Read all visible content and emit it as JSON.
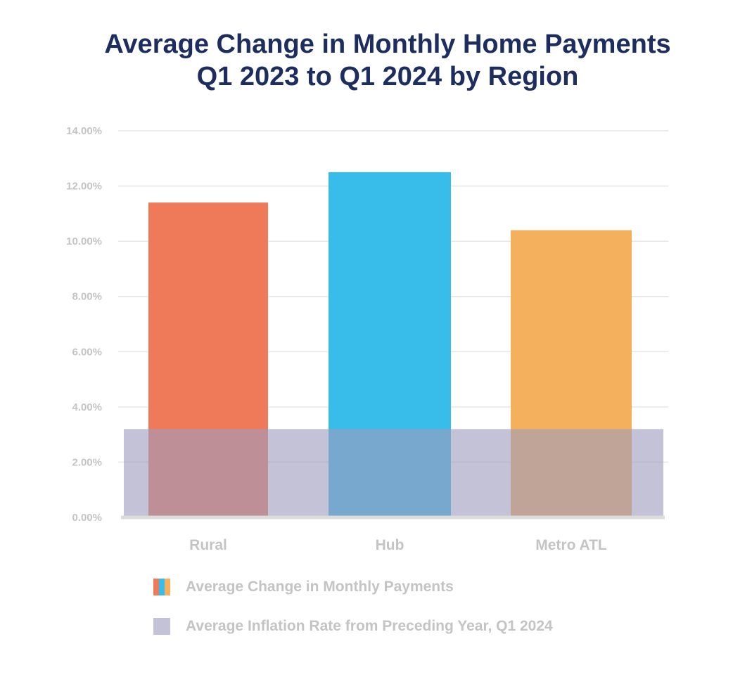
{
  "chart_data": {
    "type": "bar",
    "title": "Average Change in Monthly Home Payments",
    "subtitle": "Q1 2023 to Q1 2024 by Region",
    "xlabel": "",
    "ylabel": "",
    "categories": [
      "Rural",
      "Hub",
      "Metro ATL"
    ],
    "series": [
      {
        "name": "Average Change in Monthly Payments",
        "values": [
          11.4,
          12.5,
          10.4
        ],
        "colors": [
          "#ee7a5a",
          "#38bcea",
          "#f4b05c"
        ]
      }
    ],
    "band": {
      "name": "Average Inflation Rate from Preceding Year, Q1 2024",
      "value": 3.2,
      "color": "#9f9dbd"
    },
    "ylim": [
      0,
      14
    ],
    "yticks": [
      0,
      2,
      4,
      6,
      8,
      10,
      12,
      14
    ],
    "ytick_labels": [
      "0.00%",
      "2.00%",
      "4.00%",
      "6.00%",
      "8.00%",
      "10.00%",
      "12.00%",
      "14.00%"
    ],
    "grid": true,
    "legend_position": "bottom-left"
  },
  "legend": {
    "items": [
      {
        "label": "Average Change in Monthly Payments"
      },
      {
        "label": "Average Inflation Rate from Preceding Year, Q1 2024"
      }
    ]
  }
}
